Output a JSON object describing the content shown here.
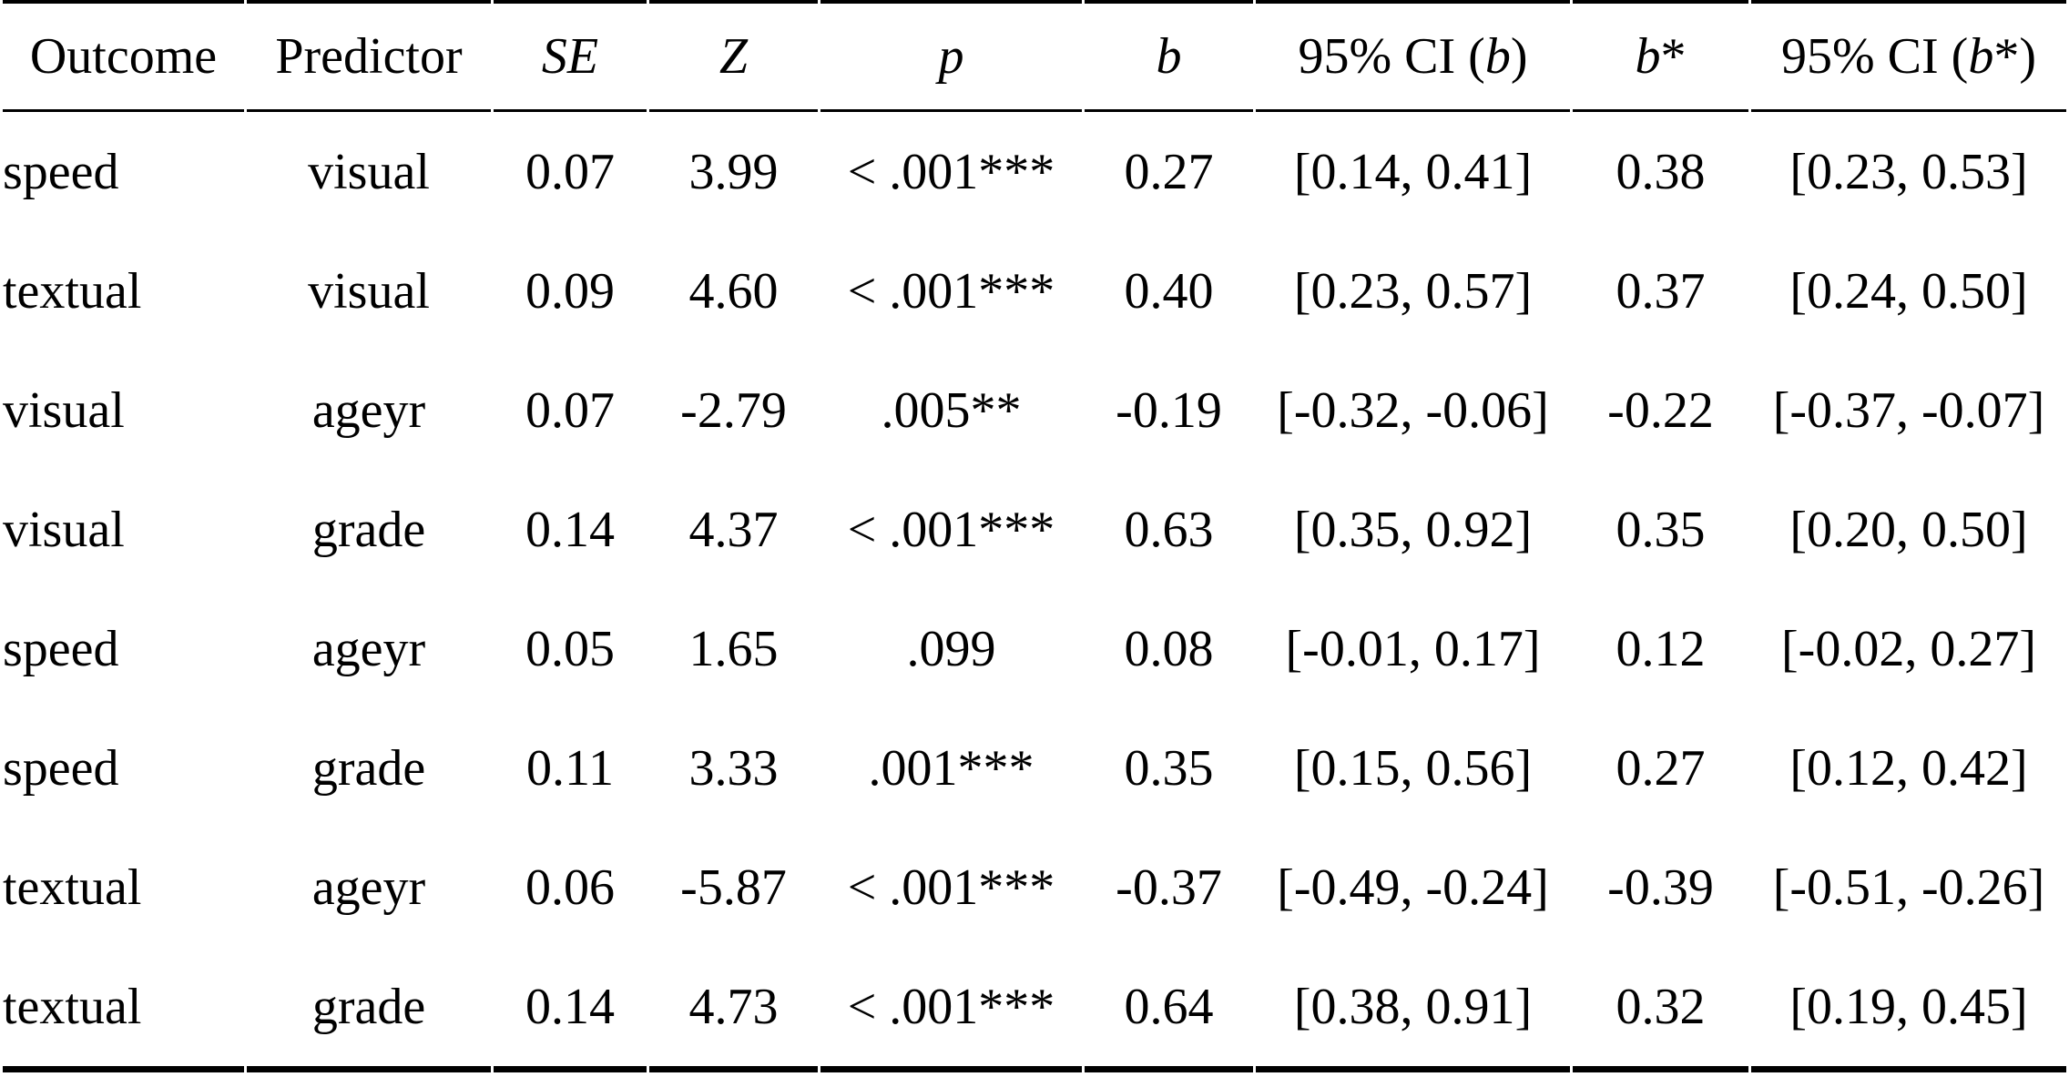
{
  "colors": {
    "text": "#000000",
    "background": "#ffffff",
    "rule": "#000000"
  },
  "table": {
    "column_keys": [
      "outcome",
      "predictor",
      "se",
      "z",
      "p",
      "b",
      "ci_b",
      "b_star",
      "ci_b_star"
    ],
    "headers": [
      {
        "pre": "Outcome",
        "it": "",
        "post": ""
      },
      {
        "pre": "Predictor",
        "it": "",
        "post": ""
      },
      {
        "pre": "",
        "it": "SE",
        "post": ""
      },
      {
        "pre": "",
        "it": "Z",
        "post": ""
      },
      {
        "pre": "",
        "it": "p",
        "post": ""
      },
      {
        "pre": "",
        "it": "b",
        "post": ""
      },
      {
        "pre": "95% CI (",
        "it": "b",
        "post": ")"
      },
      {
        "pre": "",
        "it": "b",
        "post": "*"
      },
      {
        "pre": "95% CI (",
        "it": "b",
        "post": "*)"
      }
    ],
    "rows": [
      {
        "outcome": "speed",
        "predictor": "visual",
        "se": "0.07",
        "z": "3.99",
        "p": "< .001***",
        "b": "0.27",
        "ci_b": "[0.14, 0.41]",
        "b_star": "0.38",
        "ci_b_star": "[0.23, 0.53]"
      },
      {
        "outcome": "textual",
        "predictor": "visual",
        "se": "0.09",
        "z": "4.60",
        "p": "< .001***",
        "b": "0.40",
        "ci_b": "[0.23, 0.57]",
        "b_star": "0.37",
        "ci_b_star": "[0.24, 0.50]"
      },
      {
        "outcome": "visual",
        "predictor": "ageyr",
        "se": "0.07",
        "z": "-2.79",
        "p": ".005**",
        "b": "-0.19",
        "ci_b": "[-0.32, -0.06]",
        "b_star": "-0.22",
        "ci_b_star": "[-0.37, -0.07]"
      },
      {
        "outcome": "visual",
        "predictor": "grade",
        "se": "0.14",
        "z": "4.37",
        "p": "< .001***",
        "b": "0.63",
        "ci_b": "[0.35, 0.92]",
        "b_star": "0.35",
        "ci_b_star": "[0.20, 0.50]"
      },
      {
        "outcome": "speed",
        "predictor": "ageyr",
        "se": "0.05",
        "z": "1.65",
        "p": ".099",
        "b": "0.08",
        "ci_b": "[-0.01, 0.17]",
        "b_star": "0.12",
        "ci_b_star": "[-0.02, 0.27]"
      },
      {
        "outcome": "speed",
        "predictor": "grade",
        "se": "0.11",
        "z": "3.33",
        "p": ".001***",
        "b": "0.35",
        "ci_b": "[0.15, 0.56]",
        "b_star": "0.27",
        "ci_b_star": "[0.12, 0.42]"
      },
      {
        "outcome": "textual",
        "predictor": "ageyr",
        "se": "0.06",
        "z": "-5.87",
        "p": "< .001***",
        "b": "-0.37",
        "ci_b": "[-0.49, -0.24]",
        "b_star": "-0.39",
        "ci_b_star": "[-0.51, -0.26]"
      },
      {
        "outcome": "textual",
        "predictor": "grade",
        "se": "0.14",
        "z": "4.73",
        "p": "< .001***",
        "b": "0.64",
        "ci_b": "[0.38, 0.91]",
        "b_star": "0.32",
        "ci_b_star": "[0.19, 0.45]"
      }
    ]
  }
}
